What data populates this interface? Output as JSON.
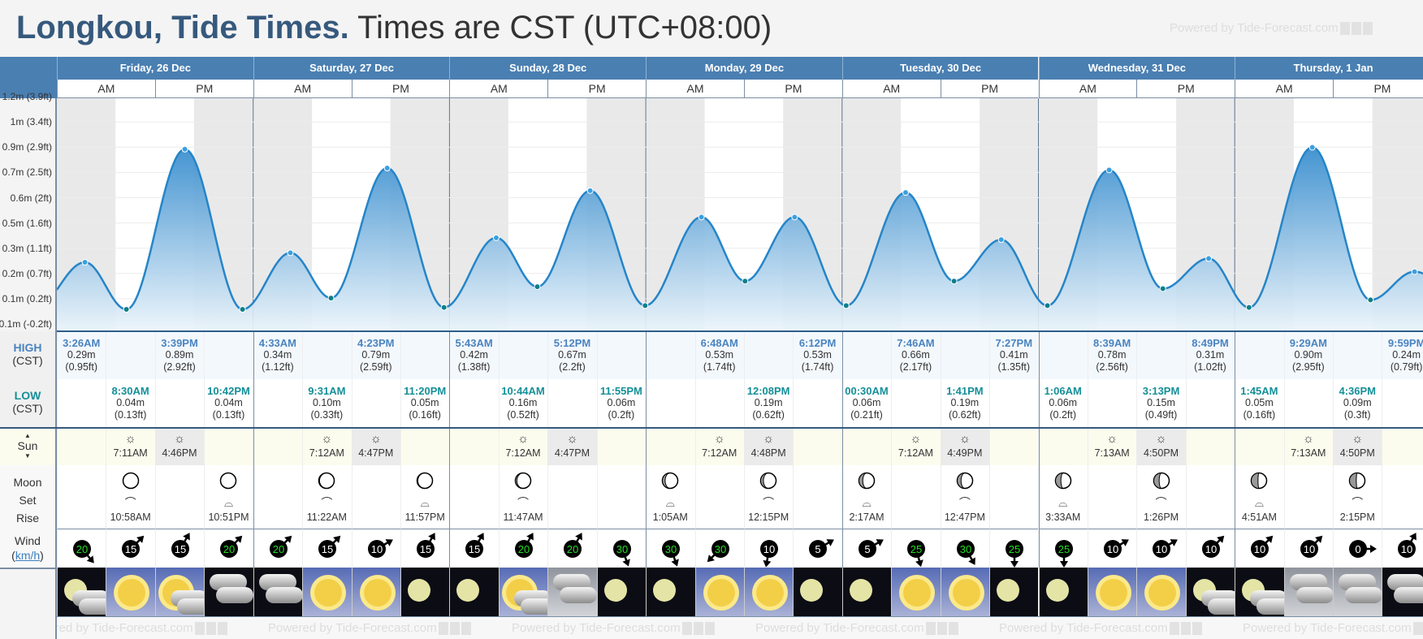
{
  "header": {
    "location": "Longkou, Tide Times.",
    "subtitle": "Times are CST (UTC+08:00)",
    "powered": "Powered by Tide-Forecast.com"
  },
  "labels": {
    "high": "HIGH",
    "low": "LOW",
    "tz": "(CST)",
    "sun": "Sun",
    "moon": "Moon",
    "set": "Set",
    "rise": "Rise",
    "wind": "Wind",
    "wind_unit": "km/h",
    "am": "AM",
    "pm": "PM"
  },
  "colors": {
    "header_bg": "#4a7fb2",
    "title": "#36597d",
    "high": "#4a84c0",
    "low": "#148f98",
    "curve": "#1f7fc8",
    "wind_strong": "#22dd22"
  },
  "chart_data": {
    "type": "area",
    "ylabels": [
      "-0.1m (-0.2ft)",
      "0.1m (0.2ft)",
      "0.2m (0.7ft)",
      "0.3m (1.1ft)",
      "0.5m (1.6ft)",
      "0.6m (2ft)",
      "0.7m (2.5ft)",
      "0.9m (2.9ft)",
      "1m (3.4ft)",
      "1.2m (3.9ft)"
    ],
    "ylim_m": [
      -0.05,
      1.2
    ]
  },
  "days": [
    {
      "name": "Friday, 26 Dec",
      "moon_shade": 0.5,
      "tides": [
        {
          "type": "high",
          "time": "3:26AM",
          "m": "0.29m",
          "ft": "(0.95ft)",
          "v": 0.29
        },
        {
          "type": "low",
          "time": "8:30AM",
          "m": "0.04m",
          "ft": "(0.13ft)",
          "v": 0.04
        },
        {
          "type": "high",
          "time": "3:39PM",
          "m": "0.89m",
          "ft": "(2.92ft)",
          "v": 0.89
        },
        {
          "type": "low",
          "time": "10:42PM",
          "m": "0.04m",
          "ft": "(0.13ft)",
          "v": 0.04
        }
      ],
      "sun": [
        {
          "type": "rise",
          "time": "7:11AM"
        },
        {
          "type": "set",
          "time": "4:46PM"
        }
      ],
      "moon": [
        {
          "type": "rise",
          "time": "10:58AM"
        },
        {
          "type": "set",
          "time": "10:51PM"
        }
      ],
      "wind": [
        {
          "speed": 20,
          "dir": 140
        },
        {
          "speed": 15,
          "dir": 45
        },
        {
          "speed": 15,
          "dir": 30
        },
        {
          "speed": 20,
          "dir": 45
        }
      ],
      "weather": [
        "night-moon-cloud",
        "day-sun",
        "day-sun-cloud",
        "night-cloud"
      ]
    },
    {
      "name": "Saturday, 27 Dec",
      "moon_shade": 0.45,
      "tides": [
        {
          "type": "high",
          "time": "4:33AM",
          "m": "0.34m",
          "ft": "(1.12ft)",
          "v": 0.34
        },
        {
          "type": "low",
          "time": "9:31AM",
          "m": "0.10m",
          "ft": "(0.33ft)",
          "v": 0.1
        },
        {
          "type": "high",
          "time": "4:23PM",
          "m": "0.79m",
          "ft": "(2.59ft)",
          "v": 0.79
        },
        {
          "type": "low",
          "time": "11:20PM",
          "m": "0.05m",
          "ft": "(0.16ft)",
          "v": 0.05
        }
      ],
      "sun": [
        {
          "type": "rise",
          "time": "7:12AM"
        },
        {
          "type": "set",
          "time": "4:47PM"
        }
      ],
      "moon": [
        {
          "type": "rise",
          "time": "11:22AM"
        },
        {
          "type": "set",
          "time": "11:57PM"
        }
      ],
      "wind": [
        {
          "speed": 20,
          "dir": 45
        },
        {
          "speed": 15,
          "dir": 45
        },
        {
          "speed": 10,
          "dir": 60
        },
        {
          "speed": 15,
          "dir": 30
        }
      ],
      "weather": [
        "night-cloud",
        "day-sun",
        "day-sun",
        "night-moon"
      ]
    },
    {
      "name": "Sunday, 28 Dec",
      "moon_shade": 0.4,
      "tides": [
        {
          "type": "high",
          "time": "5:43AM",
          "m": "0.42m",
          "ft": "(1.38ft)",
          "v": 0.42
        },
        {
          "type": "low",
          "time": "10:44AM",
          "m": "0.16m",
          "ft": "(0.52ft)",
          "v": 0.16
        },
        {
          "type": "high",
          "time": "5:12PM",
          "m": "0.67m",
          "ft": "(2.2ft)",
          "v": 0.67
        },
        {
          "type": "low",
          "time": "11:55PM",
          "m": "0.06m",
          "ft": "(0.2ft)",
          "v": 0.06
        }
      ],
      "sun": [
        {
          "type": "rise",
          "time": "7:12AM"
        },
        {
          "type": "set",
          "time": "4:47PM"
        }
      ],
      "moon": [
        {
          "type": "rise",
          "time": "11:47AM"
        }
      ],
      "wind": [
        {
          "speed": 15,
          "dir": 30
        },
        {
          "speed": 20,
          "dir": 30
        },
        {
          "speed": 20,
          "dir": 30
        },
        {
          "speed": 30,
          "dir": 160
        }
      ],
      "weather": [
        "night-moon",
        "day-sun-cloud",
        "grey-cloud",
        "night-moon"
      ]
    },
    {
      "name": "Monday, 29 Dec",
      "moon_shade": 0.32,
      "tides": [
        {
          "type": "high",
          "time": "6:48AM",
          "m": "0.53m",
          "ft": "(1.74ft)",
          "v": 0.53
        },
        {
          "type": "low",
          "time": "12:08PM",
          "m": "0.19m",
          "ft": "(0.62ft)",
          "v": 0.19
        },
        {
          "type": "high",
          "time": "6:12PM",
          "m": "0.53m",
          "ft": "(1.74ft)",
          "v": 0.53
        }
      ],
      "sun": [
        {
          "type": "rise",
          "time": "7:12AM"
        },
        {
          "type": "set",
          "time": "4:48PM"
        }
      ],
      "moon": [
        {
          "type": "set",
          "time": "1:05AM"
        },
        {
          "type": "rise",
          "time": "12:15PM"
        }
      ],
      "wind": [
        {
          "speed": 30,
          "dir": 160
        },
        {
          "speed": 30,
          "dir": 225
        },
        {
          "speed": 10,
          "dir": 190
        },
        {
          "speed": 5,
          "dir": 60
        }
      ],
      "weather": [
        "night-moon",
        "day-sun",
        "day-sun",
        "night-moon"
      ]
    },
    {
      "name": "Tuesday, 30 Dec",
      "moon_shade": 0.25,
      "tides": [
        {
          "type": "low",
          "time": "00:30AM",
          "m": "0.06m",
          "ft": "(0.21ft)",
          "v": 0.06
        },
        {
          "type": "high",
          "time": "7:46AM",
          "m": "0.66m",
          "ft": "(2.17ft)",
          "v": 0.66
        },
        {
          "type": "low",
          "time": "1:41PM",
          "m": "0.19m",
          "ft": "(0.62ft)",
          "v": 0.19
        },
        {
          "type": "high",
          "time": "7:27PM",
          "m": "0.41m",
          "ft": "(1.35ft)",
          "v": 0.41
        }
      ],
      "sun": [
        {
          "type": "rise",
          "time": "7:12AM"
        },
        {
          "type": "set",
          "time": "4:49PM"
        }
      ],
      "moon": [
        {
          "type": "set",
          "time": "2:17AM"
        },
        {
          "type": "rise",
          "time": "12:47PM"
        }
      ],
      "wind": [
        {
          "speed": 5,
          "dir": 60
        },
        {
          "speed": 25,
          "dir": 165
        },
        {
          "speed": 30,
          "dir": 150
        },
        {
          "speed": 25,
          "dir": 180
        }
      ],
      "weather": [
        "night-moon",
        "day-sun",
        "day-sun",
        "night-moon"
      ]
    },
    {
      "name": "Wednesday, 31 Dec",
      "moon_shade": 0.15,
      "tides": [
        {
          "type": "low",
          "time": "1:06AM",
          "m": "0.06m",
          "ft": "(0.2ft)",
          "v": 0.06
        },
        {
          "type": "high",
          "time": "8:39AM",
          "m": "0.78m",
          "ft": "(2.56ft)",
          "v": 0.78
        },
        {
          "type": "low",
          "time": "3:13PM",
          "m": "0.15m",
          "ft": "(0.49ft)",
          "v": 0.15
        },
        {
          "type": "high",
          "time": "8:49PM",
          "m": "0.31m",
          "ft": "(1.02ft)",
          "v": 0.31
        }
      ],
      "sun": [
        {
          "type": "rise",
          "time": "7:13AM"
        },
        {
          "type": "set",
          "time": "4:50PM"
        }
      ],
      "moon": [
        {
          "type": "set",
          "time": "3:33AM"
        },
        {
          "type": "rise",
          "time": "1:26PM"
        }
      ],
      "wind": [
        {
          "speed": 25,
          "dir": 180
        },
        {
          "speed": 10,
          "dir": 60
        },
        {
          "speed": 10,
          "dir": 60
        },
        {
          "speed": 10,
          "dir": 45
        }
      ],
      "weather": [
        "night-moon",
        "day-sun",
        "day-sun",
        "night-moon-cloud"
      ]
    },
    {
      "name": "Thursday, 1 Jan",
      "moon_shade": 0.06,
      "tides": [
        {
          "type": "low",
          "time": "1:45AM",
          "m": "0.05m",
          "ft": "(0.16ft)",
          "v": 0.05
        },
        {
          "type": "high",
          "time": "9:29AM",
          "m": "0.90m",
          "ft": "(2.95ft)",
          "v": 0.9
        },
        {
          "type": "low",
          "time": "4:36PM",
          "m": "0.09m",
          "ft": "(0.3ft)",
          "v": 0.09
        },
        {
          "type": "high",
          "time": "9:59PM",
          "m": "0.24m",
          "ft": "(0.79ft)",
          "v": 0.24
        }
      ],
      "sun": [
        {
          "type": "rise",
          "time": "7:13AM"
        },
        {
          "type": "set",
          "time": "4:50PM"
        }
      ],
      "moon": [
        {
          "type": "set",
          "time": "4:51AM"
        },
        {
          "type": "rise",
          "time": "2:15PM"
        }
      ],
      "wind": [
        {
          "speed": 10,
          "dir": 45
        },
        {
          "speed": 10,
          "dir": 45
        },
        {
          "speed": 0,
          "dir": 90
        },
        {
          "speed": 10,
          "dir": 30
        }
      ],
      "weather": [
        "night-moon-cloud",
        "grey-cloud",
        "grey-cloud",
        "night-cloud"
      ]
    }
  ]
}
